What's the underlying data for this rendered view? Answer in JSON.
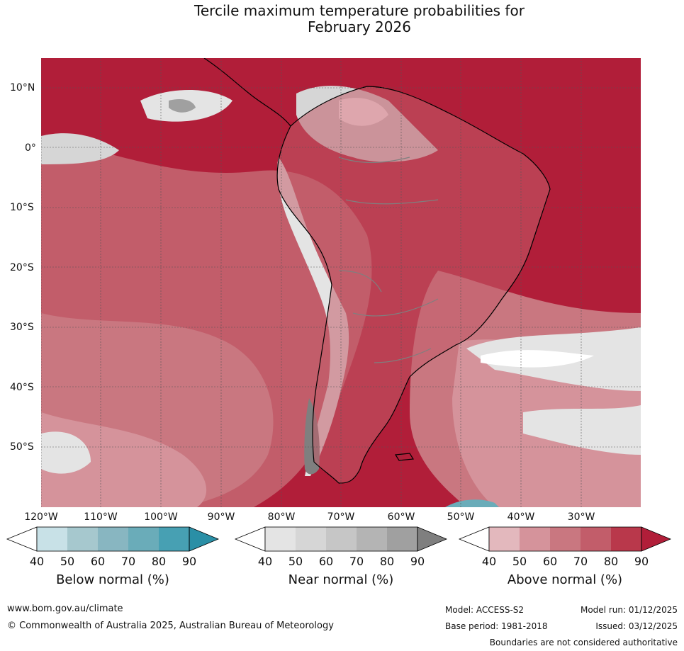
{
  "title_line1": "Tercile maximum temperature probabilities for",
  "title_line2": "February 2026",
  "lat_labels": [
    "10°N",
    "0°",
    "10°S",
    "20°S",
    "30°S",
    "40°S",
    "50°S"
  ],
  "lon_labels": [
    "120°W",
    "110°W",
    "100°W",
    "90°W",
    "80°W",
    "70°W",
    "60°W",
    "50°W",
    "40°W",
    "30°W"
  ],
  "colorbars": [
    {
      "title": "Below normal (%)",
      "ticks": [
        "40",
        "50",
        "60",
        "70",
        "80",
        "90"
      ],
      "colors": [
        "#ffffff",
        "#c8e1e7",
        "#a6c8ce",
        "#88b6c1",
        "#6aacb9",
        "#47a0b3",
        "#2a8fa6"
      ]
    },
    {
      "title": "Near normal (%)",
      "ticks": [
        "40",
        "50",
        "60",
        "70",
        "80",
        "90"
      ],
      "colors": [
        "#ffffff",
        "#e4e4e4",
        "#d6d6d6",
        "#c6c6c6",
        "#b4b4b4",
        "#a0a0a0",
        "#7f7f7f"
      ]
    },
    {
      "title": "Above normal (%)",
      "ticks": [
        "40",
        "50",
        "60",
        "70",
        "80",
        "90"
      ],
      "colors": [
        "#ffffff",
        "#e3b8bd",
        "#d5939b",
        "#c97780",
        "#c25d6a",
        "#b9384b",
        "#b11e39"
      ]
    }
  ],
  "footer": {
    "url": "www.bom.gov.au/climate",
    "copyright": "© Commonwealth of Australia 2025, Australian Bureau of Meteorology",
    "model": "Model: ACCESS-S2",
    "base_period": "Base period: 1981-2018",
    "model_run": "Model run: 01/12/2025",
    "issued": "Issued: 03/12/2025",
    "disclaimer": "Boundaries are not considered authoritative"
  }
}
